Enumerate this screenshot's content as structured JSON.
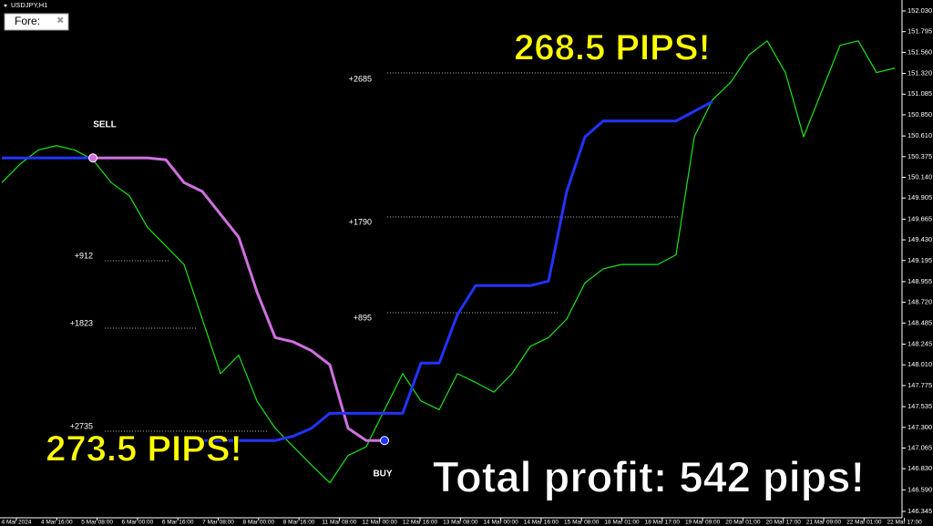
{
  "chart_data": {
    "type": "line",
    "title": "USDJPY,H1",
    "tab_label": "Fore:",
    "headline_right": "268.5 PIPS!",
    "headline_left": "273.5 PIPS!",
    "headline_total": "Total profit: 542 pips!",
    "signals": [
      "SELL",
      "BUY"
    ],
    "annotations": [
      "+912",
      "+1823",
      "+2735",
      "+2685",
      "+1790",
      "+895"
    ],
    "x_labels": [
      "4 Mar 2024",
      "4 Mar 16:00",
      "5 Mar 08:00",
      "6 Mar 00:00",
      "6 Mar 16:00",
      "7 Mar 08:00",
      "8 Mar 00:00",
      "8 Mar 16:00",
      "11 Mar 08:00",
      "12 Mar 00:00",
      "12 Mar 16:00",
      "13 Mar 08:00",
      "14 Mar 00:00",
      "14 Mar 16:00",
      "15 Mar 08:00",
      "18 Mar 01:00",
      "18 Mar 17:00",
      "19 Mar 09:00",
      "20 Mar 01:00",
      "20 Mar 17:00",
      "21 Mar 09:00",
      "22 Mar 01:00",
      "22 Mar 17:00"
    ],
    "series": [
      {
        "color": "#19e619",
        "values": [
          150.08,
          150.29,
          150.45,
          150.5,
          150.45,
          150.34,
          150.08,
          149.93,
          149.57,
          149.36,
          149.15,
          148.53,
          147.91,
          148.12,
          147.6,
          147.29,
          147.08,
          146.87,
          146.67,
          146.98,
          147.08,
          147.5,
          147.91,
          147.6,
          147.5,
          147.91,
          147.81,
          147.7,
          147.91,
          148.22,
          148.32,
          148.53,
          148.94,
          149.1,
          149.15,
          149.15,
          149.15,
          149.26,
          150.6,
          151.02,
          151.22,
          151.53,
          151.69,
          151.33,
          150.6,
          151.12,
          151.64,
          151.69,
          151.33,
          151.38
        ]
      },
      {
        "color": "#2233ff",
        "values": [
          150.36,
          150.36,
          150.36,
          150.36,
          150.36,
          150.36,
          null,
          null,
          null,
          null,
          null,
          null,
          null,
          null,
          null,
          null,
          null,
          null,
          null,
          null,
          null,
          null,
          null,
          null,
          null,
          null,
          null,
          null,
          null,
          null,
          null,
          null,
          null,
          null,
          null,
          null,
          null,
          null,
          null,
          null,
          null,
          null,
          null,
          null,
          null,
          null,
          null,
          null,
          null,
          null
        ]
      },
      {
        "color": "#d070e0",
        "values": [
          null,
          null,
          null,
          null,
          null,
          150.36,
          150.36,
          150.36,
          150.36,
          150.34,
          150.08,
          149.98,
          149.72,
          149.46,
          148.84,
          148.32,
          148.27,
          148.17,
          148.01,
          147.29,
          147.15,
          147.15,
          null,
          null,
          null,
          null,
          null,
          null,
          null,
          null,
          null,
          null,
          null,
          null,
          null,
          null,
          null,
          null,
          null,
          null,
          null,
          null,
          null,
          null,
          null,
          null,
          null,
          null,
          null,
          null
        ]
      },
      {
        "color": "#2233ff",
        "values": [
          null,
          null,
          null,
          null,
          null,
          null,
          null,
          null,
          null,
          null,
          null,
          147.15,
          147.15,
          147.15,
          147.15,
          147.15,
          147.2,
          147.29,
          147.46,
          147.46,
          147.46,
          147.46,
          147.46,
          148.03,
          148.03,
          148.58,
          148.91,
          148.91,
          148.91,
          148.91,
          148.96,
          149.98,
          150.6,
          150.78,
          150.78,
          150.78,
          150.78,
          150.78,
          150.89,
          151.0
        ]
      }
    ],
    "ylim": [
      146.345,
      152.03
    ],
    "yticks": [
      {
        "value": 152.03,
        "label": "152.030"
      },
      {
        "value": 151.795,
        "label": "151.795"
      },
      {
        "value": 151.56,
        "label": "151.560"
      },
      {
        "value": 151.32,
        "label": "151.320"
      },
      {
        "value": 151.085,
        "label": "151.085"
      },
      {
        "value": 150.85,
        "label": "150.850"
      },
      {
        "value": 150.61,
        "label": "150.610"
      },
      {
        "value": 150.375,
        "label": "150.375"
      },
      {
        "value": 150.14,
        "label": "150.140"
      },
      {
        "value": 149.905,
        "label": "149.905"
      },
      {
        "value": 149.665,
        "label": "149.665"
      },
      {
        "value": 149.43,
        "label": "149.430"
      },
      {
        "value": 149.195,
        "label": "149.195"
      },
      {
        "value": 148.955,
        "label": "148.955"
      },
      {
        "value": 148.72,
        "label": "148.720"
      },
      {
        "value": 148.485,
        "label": "148.485"
      },
      {
        "value": 148.245,
        "label": "148.245"
      },
      {
        "value": 148.01,
        "label": "148.010"
      },
      {
        "value": 147.775,
        "label": "147.775"
      },
      {
        "value": 147.535,
        "label": "147.535"
      },
      {
        "value": 147.3,
        "label": "147.300"
      },
      {
        "value": 147.065,
        "label": "147.065"
      },
      {
        "value": 146.83,
        "label": "146.830"
      },
      {
        "value": 146.59,
        "label": "146.590"
      },
      {
        "value": 146.345,
        "label": "146.345"
      }
    ]
  }
}
